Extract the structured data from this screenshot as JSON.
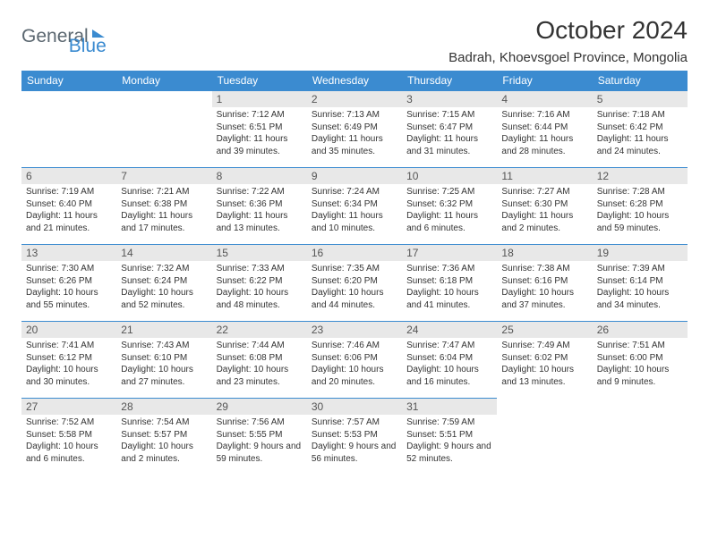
{
  "logo": {
    "text1": "General",
    "text2": "Blue"
  },
  "title": "October 2024",
  "location": "Badrah, Khoevsgoel Province, Mongolia",
  "day_headers": [
    "Sunday",
    "Monday",
    "Tuesday",
    "Wednesday",
    "Thursday",
    "Friday",
    "Saturday"
  ],
  "colors": {
    "header_bg": "#3b8bd0",
    "header_text": "#ffffff",
    "daynum_bg": "#e8e8e8",
    "cell_border": "#3b8bd0",
    "logo_gray": "#5b6770",
    "logo_blue": "#3b8bd0"
  },
  "weeks": [
    [
      null,
      null,
      {
        "n": "1",
        "sr": "7:12 AM",
        "ss": "6:51 PM",
        "dl": "11 hours and 39 minutes."
      },
      {
        "n": "2",
        "sr": "7:13 AM",
        "ss": "6:49 PM",
        "dl": "11 hours and 35 minutes."
      },
      {
        "n": "3",
        "sr": "7:15 AM",
        "ss": "6:47 PM",
        "dl": "11 hours and 31 minutes."
      },
      {
        "n": "4",
        "sr": "7:16 AM",
        "ss": "6:44 PM",
        "dl": "11 hours and 28 minutes."
      },
      {
        "n": "5",
        "sr": "7:18 AM",
        "ss": "6:42 PM",
        "dl": "11 hours and 24 minutes."
      }
    ],
    [
      {
        "n": "6",
        "sr": "7:19 AM",
        "ss": "6:40 PM",
        "dl": "11 hours and 21 minutes."
      },
      {
        "n": "7",
        "sr": "7:21 AM",
        "ss": "6:38 PM",
        "dl": "11 hours and 17 minutes."
      },
      {
        "n": "8",
        "sr": "7:22 AM",
        "ss": "6:36 PM",
        "dl": "11 hours and 13 minutes."
      },
      {
        "n": "9",
        "sr": "7:24 AM",
        "ss": "6:34 PM",
        "dl": "11 hours and 10 minutes."
      },
      {
        "n": "10",
        "sr": "7:25 AM",
        "ss": "6:32 PM",
        "dl": "11 hours and 6 minutes."
      },
      {
        "n": "11",
        "sr": "7:27 AM",
        "ss": "6:30 PM",
        "dl": "11 hours and 2 minutes."
      },
      {
        "n": "12",
        "sr": "7:28 AM",
        "ss": "6:28 PM",
        "dl": "10 hours and 59 minutes."
      }
    ],
    [
      {
        "n": "13",
        "sr": "7:30 AM",
        "ss": "6:26 PM",
        "dl": "10 hours and 55 minutes."
      },
      {
        "n": "14",
        "sr": "7:32 AM",
        "ss": "6:24 PM",
        "dl": "10 hours and 52 minutes."
      },
      {
        "n": "15",
        "sr": "7:33 AM",
        "ss": "6:22 PM",
        "dl": "10 hours and 48 minutes."
      },
      {
        "n": "16",
        "sr": "7:35 AM",
        "ss": "6:20 PM",
        "dl": "10 hours and 44 minutes."
      },
      {
        "n": "17",
        "sr": "7:36 AM",
        "ss": "6:18 PM",
        "dl": "10 hours and 41 minutes."
      },
      {
        "n": "18",
        "sr": "7:38 AM",
        "ss": "6:16 PM",
        "dl": "10 hours and 37 minutes."
      },
      {
        "n": "19",
        "sr": "7:39 AM",
        "ss": "6:14 PM",
        "dl": "10 hours and 34 minutes."
      }
    ],
    [
      {
        "n": "20",
        "sr": "7:41 AM",
        "ss": "6:12 PM",
        "dl": "10 hours and 30 minutes."
      },
      {
        "n": "21",
        "sr": "7:43 AM",
        "ss": "6:10 PM",
        "dl": "10 hours and 27 minutes."
      },
      {
        "n": "22",
        "sr": "7:44 AM",
        "ss": "6:08 PM",
        "dl": "10 hours and 23 minutes."
      },
      {
        "n": "23",
        "sr": "7:46 AM",
        "ss": "6:06 PM",
        "dl": "10 hours and 20 minutes."
      },
      {
        "n": "24",
        "sr": "7:47 AM",
        "ss": "6:04 PM",
        "dl": "10 hours and 16 minutes."
      },
      {
        "n": "25",
        "sr": "7:49 AM",
        "ss": "6:02 PM",
        "dl": "10 hours and 13 minutes."
      },
      {
        "n": "26",
        "sr": "7:51 AM",
        "ss": "6:00 PM",
        "dl": "10 hours and 9 minutes."
      }
    ],
    [
      {
        "n": "27",
        "sr": "7:52 AM",
        "ss": "5:58 PM",
        "dl": "10 hours and 6 minutes."
      },
      {
        "n": "28",
        "sr": "7:54 AM",
        "ss": "5:57 PM",
        "dl": "10 hours and 2 minutes."
      },
      {
        "n": "29",
        "sr": "7:56 AM",
        "ss": "5:55 PM",
        "dl": "9 hours and 59 minutes."
      },
      {
        "n": "30",
        "sr": "7:57 AM",
        "ss": "5:53 PM",
        "dl": "9 hours and 56 minutes."
      },
      {
        "n": "31",
        "sr": "7:59 AM",
        "ss": "5:51 PM",
        "dl": "9 hours and 52 minutes."
      },
      null,
      null
    ]
  ],
  "labels": {
    "sunrise": "Sunrise:",
    "sunset": "Sunset:",
    "daylight": "Daylight:"
  }
}
